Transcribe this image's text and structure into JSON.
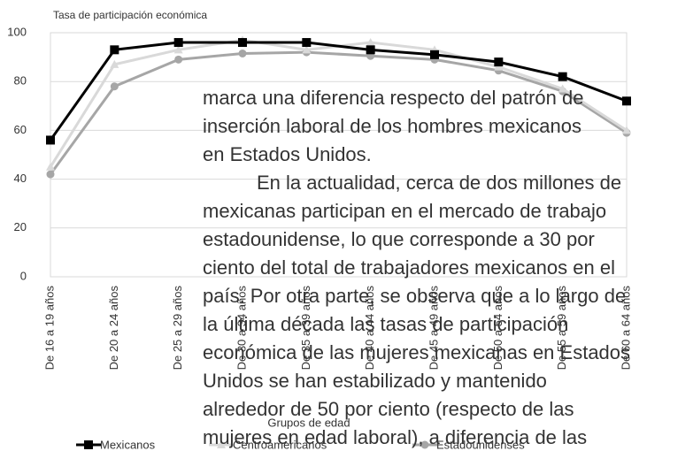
{
  "chart_data": {
    "type": "line",
    "title": "Tasa de participación económica",
    "categories": [
      "De 16 a 19 años",
      "De 20 a 24 años",
      "De 25 a 29 años",
      "De 30 a 34 años",
      "De 35 a 39 años",
      "De 40 a 44 años",
      "De 45 a 49 años",
      "De 50 a 54 años",
      "De 55 a 59 años",
      "De 60 a 64 años"
    ],
    "series": [
      {
        "name": "Mexicanos",
        "color": "#000000",
        "marker": "square",
        "values": [
          56,
          93,
          96,
          96,
          96,
          93,
          91,
          88,
          82,
          72
        ]
      },
      {
        "name": "Centroamericanos",
        "color": "#d9d9d9",
        "marker": "triangle",
        "values": [
          45,
          87,
          93,
          97,
          93,
          96,
          93,
          86,
          77,
          60
        ]
      },
      {
        "name": "Estadounidenses",
        "color": "#a6a6a6",
        "marker": "circle",
        "values": [
          42,
          78,
          89,
          91.5,
          92,
          90.5,
          89,
          84.5,
          76,
          59
        ]
      }
    ],
    "xlabel": "Grupos de edad",
    "ylim": [
      0,
      100
    ],
    "yticks": [
      0,
      20,
      40,
      60,
      80,
      100
    ],
    "grid": true,
    "legend": "bottom"
  },
  "overlay_text": [
    "marca una diferencia respecto del patrón de",
    "inserción laboral de los hombres mexicanos",
    "en Estados Unidos.",
    "En la actualidad, cerca de dos millones de",
    "mexicanas participan en el mercado de trabajo",
    "estadounidense, lo que corresponde a 30 por",
    "ciento del total de trabajadores mexicanos en el",
    "país. Por otra parte, se observa que a lo largo de",
    "la última década las tasas de participación",
    "económica de las mujeres mexicanas en Estados",
    "Unidos se han estabilizado y mantenido",
    "alrededor de 50 por ciento (respecto de las",
    "mujeres en edad laboral), a diferencia de las"
  ]
}
